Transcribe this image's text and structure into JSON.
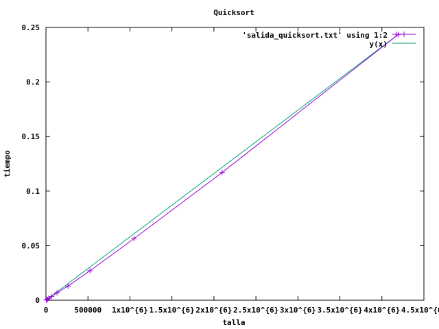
{
  "chart_data": {
    "type": "line",
    "title": "Quicksort",
    "xlabel": "talla",
    "ylabel": "tiempo",
    "xlim": [
      0,
      4500000
    ],
    "ylim": [
      0,
      0.25
    ],
    "x_ticks": [
      {
        "value": 0,
        "label": "0"
      },
      {
        "value": 500000,
        "label": "500000"
      },
      {
        "value": 1000000,
        "label": "1x10^{6}"
      },
      {
        "value": 1500000,
        "label": "1.5x10^{6}"
      },
      {
        "value": 2000000,
        "label": "2x10^{6}"
      },
      {
        "value": 2500000,
        "label": "2.5x10^{6}"
      },
      {
        "value": 3000000,
        "label": "3x10^{6}"
      },
      {
        "value": 3500000,
        "label": "3.5x10^{6}"
      },
      {
        "value": 4000000,
        "label": "4x10^{6}"
      },
      {
        "value": 4500000,
        "label": "4.5x10^{6}"
      }
    ],
    "y_ticks": [
      {
        "value": 0,
        "label": "0"
      },
      {
        "value": 0.05,
        "label": "0.05"
      },
      {
        "value": 0.1,
        "label": "0.1"
      },
      {
        "value": 0.15,
        "label": "0.15"
      },
      {
        "value": 0.2,
        "label": "0.2"
      },
      {
        "value": 0.25,
        "label": "0.25"
      }
    ],
    "grid": false,
    "legend_position": "top-right",
    "series": [
      {
        "name": "'salida_quicksort.txt' using 1:2",
        "color": "#9400d3",
        "style": "linespoints",
        "marker": "plus",
        "x": [
          4096,
          8192,
          16384,
          32768,
          65536,
          131072,
          262144,
          524288,
          1048576,
          2097152,
          4194304
        ],
        "y": [
          0.0002,
          0.0004,
          0.0008,
          0.0017,
          0.0034,
          0.0068,
          0.013,
          0.027,
          0.0565,
          0.117,
          0.2435
        ]
      },
      {
        "name": "y(x)",
        "color": "#009e73",
        "style": "lines",
        "x": [
          0,
          4194304
        ],
        "y": [
          0,
          0.2435
        ]
      }
    ]
  }
}
